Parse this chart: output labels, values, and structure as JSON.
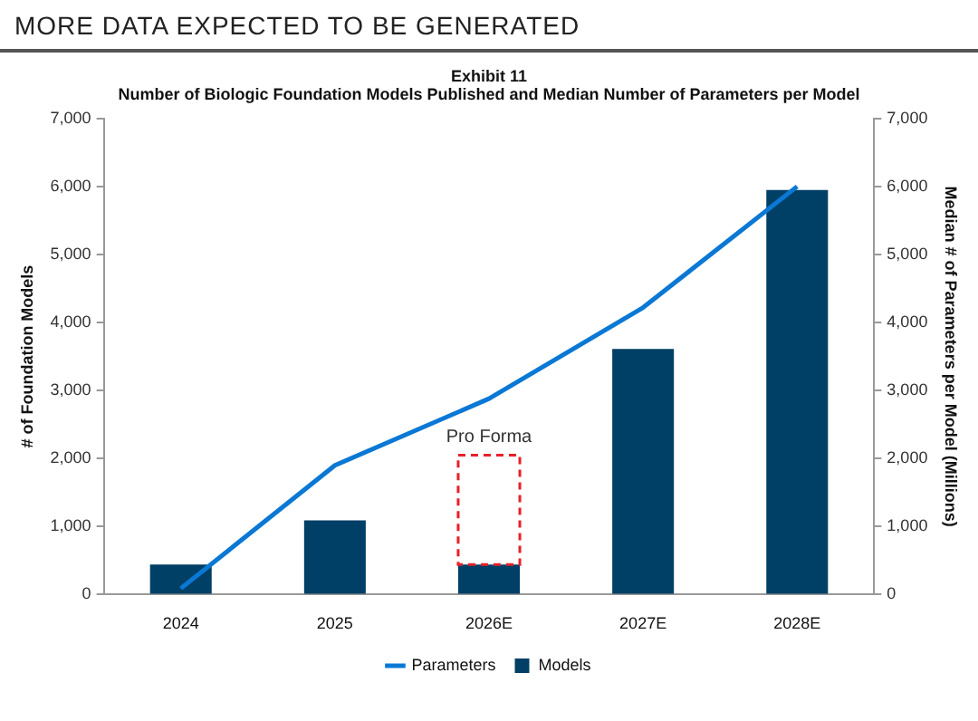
{
  "chart_data": {
    "type": "bar",
    "title": "MORE DATA EXPECTED TO BE GENERATED",
    "subtitle": "Exhibit 11",
    "annotations": [
      "Number of Biologic Foundation Models Published and Median Number of Parameters per Model"
    ],
    "categories": [
      "2024",
      "2025",
      "2026E",
      "2027E",
      "2028E"
    ],
    "ylabel": "# of Foundation Models",
    "y2label": "Median # of Parameters per Model (Millions)",
    "stacked": true,
    "legend": "bottom",
    "ylim": [
      0,
      7000
    ],
    "yticks": [
      0,
      {
        "value": 1000,
        "label": "1,000"
      },
      {
        "value": 2000,
        "label": "2,000"
      },
      {
        "value": 3000,
        "label": "3,000"
      },
      {
        "value": 4000,
        "label": "4,000"
      },
      {
        "value": 5000,
        "label": "5,000"
      },
      {
        "value": 6000,
        "label": "6,000"
      },
      {
        "value": 7000,
        "label": "7,000"
      }
    ],
    "y2lim": [
      0,
      7000
    ],
    "y2ticks": [
      0,
      {
        "value": 1000,
        "label": "1,000"
      },
      {
        "value": 2000,
        "label": "2,000"
      },
      {
        "value": 3000,
        "label": "3,000"
      },
      {
        "value": 4000,
        "label": "4,000"
      },
      {
        "value": 5000,
        "label": "5,000"
      },
      {
        "value": 6000,
        "label": "6,000"
      },
      {
        "value": 7000,
        "label": "7,000"
      }
    ],
    "series": [
      {
        "name": "Models",
        "color": "#003f66",
        "values": [
          440,
          1090,
          440,
          3610,
          5950
        ]
      },
      {
        "name": "Pro Forma",
        "color": "#e8202a",
        "line_style": "dashed",
        "values": [
          null,
          null,
          1610,
          null,
          null
        ]
      },
      {
        "name": "Parameters",
        "type": "line",
        "axis": "y2",
        "color": "#0a78d4",
        "values": [
          90,
          1900,
          2880,
          4220,
          6000
        ]
      }
    ]
  }
}
